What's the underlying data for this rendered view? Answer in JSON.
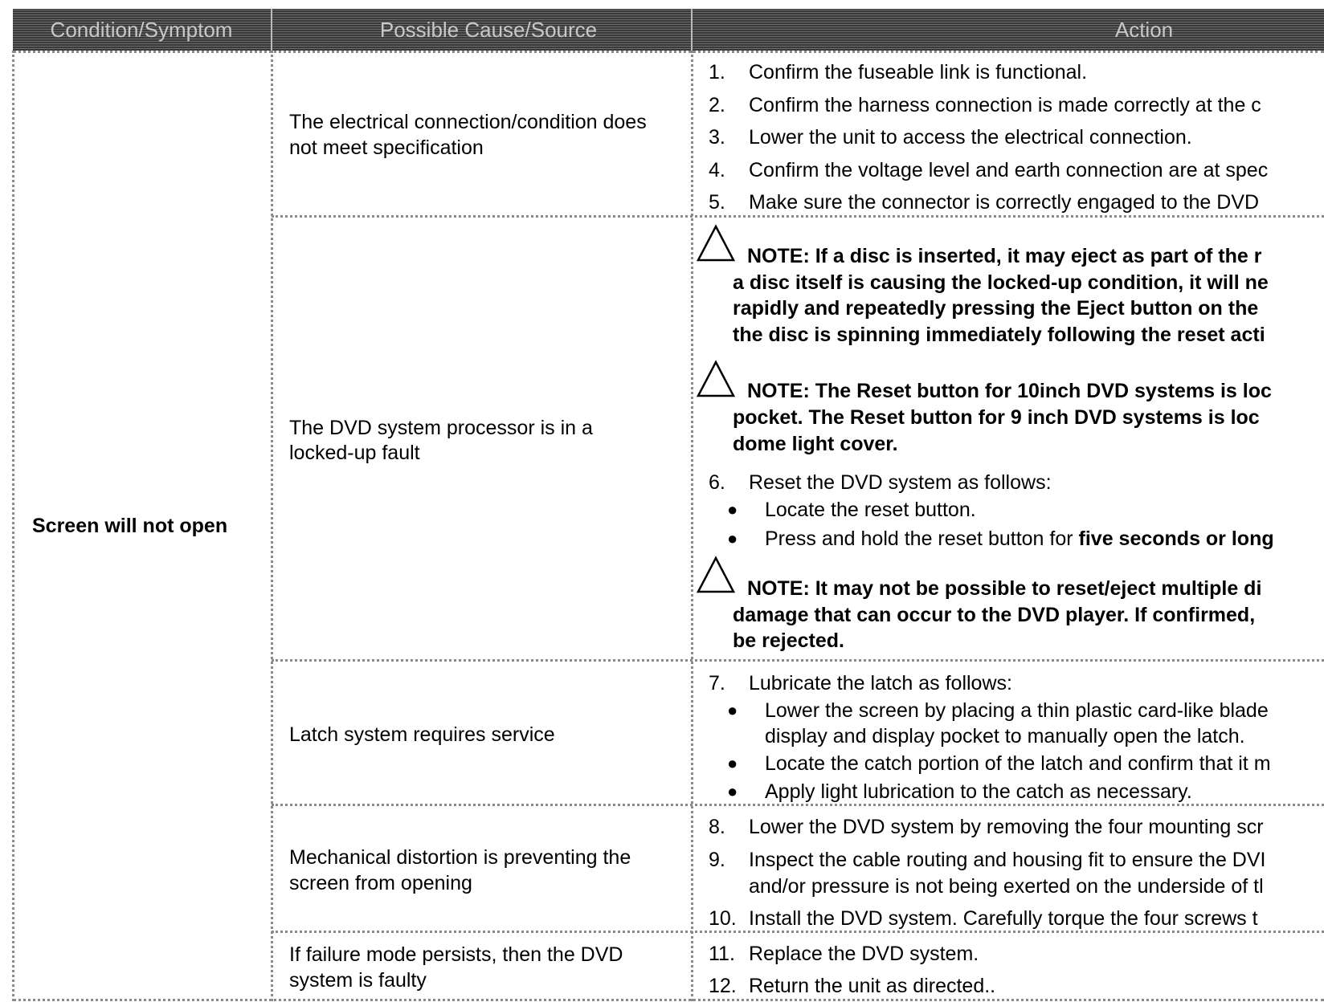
{
  "header": {
    "col1": "Condition/Symptom",
    "col2": "Possible Cause/Source",
    "col3": "Action"
  },
  "condition": "Screen will not open",
  "causes": [
    [
      "The electrical connection/condition does",
      "not meet specification"
    ],
    [
      "The DVD system processor is in a",
      "locked-up fault"
    ],
    [
      "Latch system requires service"
    ],
    [
      "Mechanical distortion is preventing the",
      "screen from opening"
    ],
    [
      "If failure mode persists, then the DVD",
      "system is faulty"
    ]
  ],
  "steps": {
    "s1": {
      "n": "1.",
      "t": "Confirm the fuseable link is functional."
    },
    "s2": {
      "n": "2.",
      "t": "Confirm the harness connection is made correctly at the c"
    },
    "s3": {
      "n": "3.",
      "t": "Lower the unit to access the electrical connection."
    },
    "s4": {
      "n": "4.",
      "t": "Confirm the voltage level and earth connection are at spec"
    },
    "s5": {
      "n": "5.",
      "t": "Make sure the connector is correctly engaged to the DVD"
    },
    "s6": {
      "n": "6.",
      "t": "Reset the DVD system as follows:"
    },
    "s6b1": "Locate the reset button.",
    "s6b2a": "Press and hold the reset button for ",
    "s6b2b": "five seconds or long",
    "s7": {
      "n": "7.",
      "t": "Lubricate the latch as follows:"
    },
    "s7b1a": "Lower the screen by placing a thin plastic card-like blade",
    "s7b1b": "display and display pocket to manually open the latch.",
    "s7b2": "Locate the catch portion of the latch and confirm that it m",
    "s7b3": "Apply light lubrication to the catch as necessary.",
    "s8": {
      "n": "8.",
      "t": "Lower the DVD system by removing the four mounting scr"
    },
    "s9a": {
      "n": "9.",
      "t": "Inspect the cable routing and housing fit to ensure the DVI"
    },
    "s9b": "and/or pressure is not being exerted on the underside of tl",
    "s10": {
      "n": "10.",
      "t": "Install the DVD system.  Carefully torque the four screws t"
    },
    "s11": {
      "n": "11.",
      "t": "Replace the DVD system."
    },
    "s12": {
      "n": "12.",
      "t": "Return the unit as directed.."
    }
  },
  "notes": {
    "n1": [
      "NOTE:  If a disc is inserted, it may eject as part of the r",
      "a disc itself is causing the locked-up condition, it will ne",
      "rapidly and repeatedly pressing the Eject button on the",
      "the disc is spinning immediately following the reset acti"
    ],
    "n2": [
      "NOTE: The Reset button for 10inch DVD systems is loc",
      "pocket.  The Reset button for 9 inch DVD systems is loc",
      "dome light cover."
    ],
    "n3": [
      "NOTE:  It may not be possible to reset/eject multiple di",
      "damage that can occur to the DVD player. If confirmed,",
      "be rejected."
    ]
  },
  "icons": {
    "note": "warning-triangle-icon",
    "bullet": "bullet-icon"
  }
}
